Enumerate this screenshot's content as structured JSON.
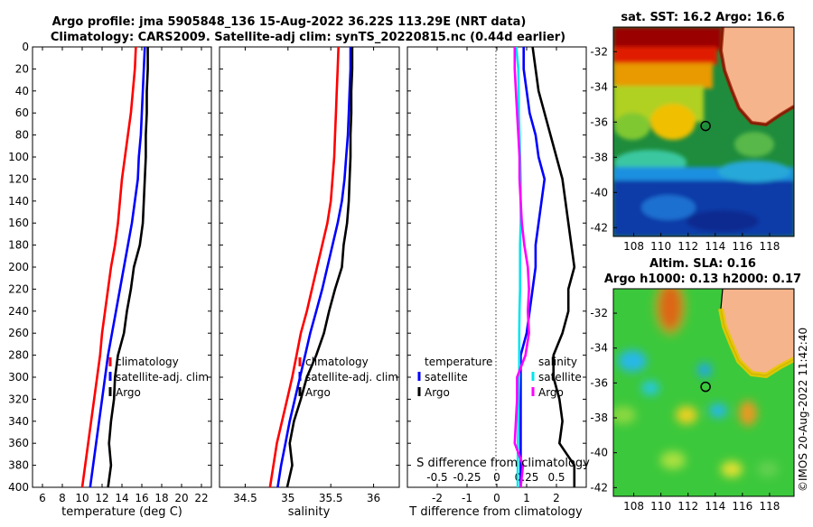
{
  "title_line1": "Argo profile: jma 5905848_136 15-Aug-2022 36.22S 113.29E (NRT data)",
  "title_line2": "Climatology: CARS2009. Satellite-adj clim: synTS_20220815.nc (0.44d earlier)",
  "credit": "©IMOS 20-Aug-2022 11:42:40",
  "colors": {
    "climatology": "#ff0000",
    "satellite": "#0000ff",
    "argo": "#000000",
    "temp_diff": "#00e5ee",
    "sal_diff": "#ff00ff"
  },
  "chart_data": [
    {
      "type": "line",
      "name": "temperature-profile",
      "xlabel": "temperature (deg C)",
      "ylabel": "",
      "xlim": [
        5,
        23
      ],
      "ylim": [
        400,
        0
      ],
      "xticks": [
        6,
        8,
        10,
        12,
        14,
        16,
        18,
        20,
        22
      ],
      "yticks": [
        0,
        20,
        40,
        60,
        80,
        100,
        120,
        140,
        160,
        180,
        200,
        220,
        240,
        260,
        280,
        300,
        320,
        340,
        360,
        380,
        400
      ],
      "legend": [
        "climatology",
        "satellite-adj. clim",
        "Argo"
      ],
      "series": [
        {
          "name": "climatology",
          "depth": [
            0,
            20,
            40,
            60,
            80,
            100,
            120,
            140,
            160,
            180,
            200,
            220,
            240,
            260,
            280,
            300,
            320,
            340,
            360,
            380,
            400
          ],
          "values": [
            15.4,
            15.3,
            15.1,
            14.9,
            14.6,
            14.3,
            14.0,
            13.8,
            13.6,
            13.3,
            12.9,
            12.6,
            12.3,
            12.0,
            11.8,
            11.5,
            11.2,
            10.9,
            10.6,
            10.3,
            10.0
          ]
        },
        {
          "name": "satellite-adj. clim",
          "depth": [
            0,
            20,
            40,
            60,
            80,
            100,
            120,
            140,
            160,
            180,
            200,
            220,
            240,
            260,
            280,
            300,
            320,
            340,
            360,
            380,
            400
          ],
          "values": [
            16.3,
            16.2,
            16.1,
            16.0,
            15.9,
            15.7,
            15.6,
            15.3,
            15.0,
            14.6,
            14.2,
            13.8,
            13.4,
            13.0,
            12.6,
            12.3,
            12.0,
            11.7,
            11.4,
            11.1,
            10.8
          ]
        },
        {
          "name": "Argo",
          "depth": [
            0,
            20,
            40,
            60,
            80,
            100,
            120,
            140,
            160,
            180,
            200,
            220,
            240,
            260,
            280,
            300,
            320,
            340,
            360,
            380,
            400
          ],
          "values": [
            16.6,
            16.6,
            16.5,
            16.5,
            16.4,
            16.4,
            16.3,
            16.2,
            16.1,
            15.8,
            15.2,
            14.9,
            14.5,
            14.2,
            13.6,
            13.3,
            13.2,
            12.9,
            12.7,
            12.9,
            12.6
          ]
        }
      ]
    },
    {
      "type": "line",
      "name": "salinity-profile",
      "xlabel": "salinity",
      "ylabel": "",
      "xlim": [
        34.2,
        36.3
      ],
      "ylim": [
        400,
        0
      ],
      "xticks": [
        34.5,
        35,
        35.5,
        36
      ],
      "xtick_labels": [
        "34.5",
        "35",
        "35.5",
        "36"
      ],
      "legend": [
        "climatology",
        "satellite-adj. clim",
        "Argo"
      ],
      "series": [
        {
          "name": "climatology",
          "depth": [
            0,
            20,
            40,
            60,
            80,
            100,
            120,
            140,
            160,
            180,
            200,
            220,
            240,
            260,
            280,
            300,
            320,
            340,
            360,
            380,
            400
          ],
          "values": [
            35.59,
            35.58,
            35.57,
            35.56,
            35.55,
            35.54,
            35.52,
            35.5,
            35.46,
            35.4,
            35.34,
            35.28,
            35.22,
            35.15,
            35.1,
            35.05,
            34.99,
            34.93,
            34.87,
            34.83,
            34.79
          ]
        },
        {
          "name": "satellite-adj. clim",
          "depth": [
            0,
            20,
            40,
            60,
            80,
            100,
            120,
            140,
            160,
            180,
            200,
            220,
            240,
            260,
            280,
            300,
            320,
            340,
            360,
            380,
            400
          ],
          "values": [
            35.73,
            35.73,
            35.72,
            35.71,
            35.7,
            35.68,
            35.66,
            35.63,
            35.58,
            35.52,
            35.46,
            35.4,
            35.33,
            35.26,
            35.2,
            35.14,
            35.08,
            35.02,
            34.97,
            34.92,
            34.88
          ]
        },
        {
          "name": "Argo",
          "depth": [
            0,
            20,
            40,
            60,
            80,
            100,
            120,
            140,
            160,
            180,
            200,
            220,
            240,
            260,
            280,
            300,
            320,
            340,
            360,
            380,
            400
          ],
          "values": [
            35.75,
            35.75,
            35.74,
            35.74,
            35.73,
            35.73,
            35.72,
            35.71,
            35.69,
            35.65,
            35.63,
            35.55,
            35.48,
            35.42,
            35.33,
            35.22,
            35.15,
            35.07,
            35.02,
            35.05,
            34.99
          ]
        }
      ]
    },
    {
      "type": "line",
      "name": "difference-profile",
      "xlabel": "T difference from climatology",
      "top_xlabel": "S difference from climatology",
      "xlim": [
        -3,
        3
      ],
      "ylim": [
        400,
        0
      ],
      "xticks": [
        -2,
        -1,
        0,
        1,
        2
      ],
      "top_xticks": [
        -0.5,
        -0.25,
        0,
        0.25,
        0.5
      ],
      "top_xtick_labels": [
        "-0.5",
        "-0.25",
        "0",
        "0.25",
        "0.5"
      ],
      "legend_temperature": {
        "heading": "temperature",
        "items": [
          "satellite",
          "Argo"
        ]
      },
      "legend_salinity": {
        "heading": "salinity",
        "items": [
          "satellite",
          "Argo"
        ]
      },
      "series": [
        {
          "name": "T satellite",
          "depth": [
            0,
            20,
            40,
            60,
            80,
            100,
            120,
            140,
            160,
            180,
            200,
            220,
            240,
            260,
            280,
            300,
            320,
            340,
            360,
            380,
            400
          ],
          "values": [
            0.9,
            0.9,
            1.0,
            1.1,
            1.3,
            1.4,
            1.6,
            1.5,
            1.4,
            1.3,
            1.3,
            1.2,
            1.1,
            1.0,
            0.8,
            0.8,
            0.8,
            0.8,
            0.8,
            0.8,
            0.8
          ]
        },
        {
          "name": "T Argo",
          "depth": [
            0,
            20,
            40,
            60,
            80,
            100,
            120,
            140,
            160,
            180,
            200,
            220,
            240,
            260,
            280,
            300,
            320,
            340,
            360,
            380,
            400
          ],
          "values": [
            1.2,
            1.3,
            1.4,
            1.6,
            1.8,
            2.0,
            2.2,
            2.3,
            2.4,
            2.5,
            2.6,
            2.4,
            2.4,
            2.2,
            1.9,
            1.9,
            2.1,
            2.2,
            2.1,
            2.6,
            2.6
          ]
        },
        {
          "name": "T satellite diff",
          "depth": [
            0,
            20,
            40,
            60,
            80,
            100,
            120,
            140,
            160,
            180,
            200,
            220,
            240,
            260,
            280,
            300,
            320,
            340,
            360,
            380,
            400
          ],
          "values": [
            0.65,
            0.72,
            0.73,
            0.74,
            0.76,
            0.78,
            0.8,
            0.8,
            0.8,
            0.78,
            0.78,
            0.78,
            0.76,
            0.75,
            0.75,
            0.75,
            0.73,
            0.72,
            0.71,
            0.7,
            0.7
          ]
        },
        {
          "name": "S Argo diff",
          "depth": [
            0,
            20,
            40,
            60,
            80,
            100,
            120,
            140,
            160,
            180,
            200,
            220,
            240,
            260,
            280,
            300,
            320,
            340,
            360,
            380,
            400
          ],
          "values": [
            0.15,
            0.15,
            0.16,
            0.17,
            0.18,
            0.19,
            0.19,
            0.2,
            0.21,
            0.23,
            0.26,
            0.27,
            0.26,
            0.27,
            0.24,
            0.17,
            0.17,
            0.16,
            0.15,
            0.22,
            0.2
          ]
        }
      ]
    },
    {
      "type": "heatmap",
      "name": "sst-map",
      "title": "sat. SST: 16.2 Argo: 16.6",
      "xticks": [
        108,
        110,
        112,
        114,
        116,
        118
      ],
      "yticks": [
        -32,
        -34,
        -36,
        -38,
        -40,
        -42
      ],
      "xlim": [
        106.5,
        119.8
      ],
      "ylim": [
        -42.5,
        -30.6
      ],
      "argo_position": [
        113.29,
        -36.22
      ]
    },
    {
      "type": "heatmap",
      "name": "sla-map",
      "title_line1": "Altim. SLA: 0.16",
      "title_line2": "Argo h1000: 0.13 h2000: 0.17",
      "xticks": [
        108,
        110,
        112,
        114,
        116,
        118
      ],
      "yticks": [
        -32,
        -34,
        -36,
        -38,
        -40,
        -42
      ],
      "xlim": [
        106.5,
        119.8
      ],
      "ylim": [
        -42.5,
        -30.6
      ],
      "argo_position": [
        113.29,
        -36.22
      ]
    }
  ]
}
